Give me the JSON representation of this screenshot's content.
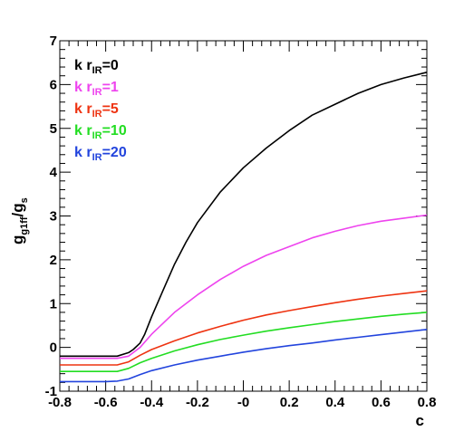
{
  "chart_data": {
    "type": "line",
    "title": "",
    "xlabel": "c",
    "ylabel": "g_{g1ff}/g_s",
    "xlim": [
      -0.8,
      0.8
    ],
    "ylim": [
      -1,
      7
    ],
    "xticks": [
      "-0.8",
      "-0.6",
      "-0.4",
      "-0.2",
      "-0",
      "0.2",
      "0.4",
      "0.6",
      "0.8"
    ],
    "yticks": [
      "-1",
      "0",
      "1",
      "2",
      "3",
      "4",
      "5",
      "6",
      "7"
    ],
    "grid": false,
    "legend_placement": "top-left",
    "series": [
      {
        "name": "k r_IR=0",
        "color": "#000000",
        "x": [
          -0.8,
          -0.7,
          -0.6,
          -0.55,
          -0.5,
          -0.48,
          -0.45,
          -0.43,
          -0.4,
          -0.35,
          -0.3,
          -0.25,
          -0.2,
          -0.1,
          0.0,
          0.1,
          0.2,
          0.3,
          0.4,
          0.5,
          0.6,
          0.7,
          0.8
        ],
        "y": [
          -0.2,
          -0.2,
          -0.2,
          -0.2,
          -0.12,
          -0.05,
          0.1,
          0.3,
          0.7,
          1.3,
          1.9,
          2.4,
          2.85,
          3.55,
          4.1,
          4.55,
          4.95,
          5.3,
          5.55,
          5.8,
          6.0,
          6.15,
          6.28
        ]
      },
      {
        "name": "k r_IR=1",
        "color": "#ee44ee",
        "x": [
          -0.8,
          -0.7,
          -0.6,
          -0.55,
          -0.5,
          -0.45,
          -0.4,
          -0.3,
          -0.2,
          -0.1,
          0.0,
          0.1,
          0.2,
          0.3,
          0.4,
          0.5,
          0.6,
          0.7,
          0.8
        ],
        "y": [
          -0.25,
          -0.25,
          -0.25,
          -0.25,
          -0.2,
          0.0,
          0.3,
          0.8,
          1.2,
          1.55,
          1.85,
          2.1,
          2.3,
          2.5,
          2.65,
          2.78,
          2.88,
          2.95,
          3.02
        ]
      },
      {
        "name": "k r_IR=5",
        "color": "#ee3311",
        "x": [
          -0.8,
          -0.7,
          -0.6,
          -0.55,
          -0.5,
          -0.45,
          -0.4,
          -0.3,
          -0.2,
          -0.1,
          0.0,
          0.1,
          0.2,
          0.3,
          0.4,
          0.5,
          0.6,
          0.7,
          0.8
        ],
        "y": [
          -0.4,
          -0.4,
          -0.4,
          -0.4,
          -0.33,
          -0.18,
          -0.05,
          0.15,
          0.33,
          0.48,
          0.62,
          0.74,
          0.84,
          0.93,
          1.02,
          1.1,
          1.17,
          1.23,
          1.29
        ]
      },
      {
        "name": "k r_IR=10",
        "color": "#22dd22",
        "x": [
          -0.8,
          -0.7,
          -0.6,
          -0.55,
          -0.5,
          -0.45,
          -0.4,
          -0.3,
          -0.2,
          -0.1,
          0.0,
          0.1,
          0.2,
          0.3,
          0.4,
          0.5,
          0.6,
          0.7,
          0.8
        ],
        "y": [
          -0.55,
          -0.55,
          -0.55,
          -0.55,
          -0.48,
          -0.35,
          -0.25,
          -0.08,
          0.06,
          0.18,
          0.28,
          0.37,
          0.45,
          0.52,
          0.59,
          0.65,
          0.71,
          0.76,
          0.8
        ]
      },
      {
        "name": "k r_IR=20",
        "color": "#2244dd",
        "x": [
          -0.8,
          -0.7,
          -0.6,
          -0.55,
          -0.5,
          -0.45,
          -0.4,
          -0.3,
          -0.2,
          -0.1,
          0.0,
          0.1,
          0.2,
          0.3,
          0.4,
          0.5,
          0.6,
          0.7,
          0.8
        ],
        "y": [
          -0.78,
          -0.78,
          -0.78,
          -0.77,
          -0.72,
          -0.62,
          -0.53,
          -0.4,
          -0.29,
          -0.2,
          -0.11,
          -0.03,
          0.04,
          0.1,
          0.17,
          0.23,
          0.29,
          0.35,
          0.41
        ]
      }
    ]
  }
}
